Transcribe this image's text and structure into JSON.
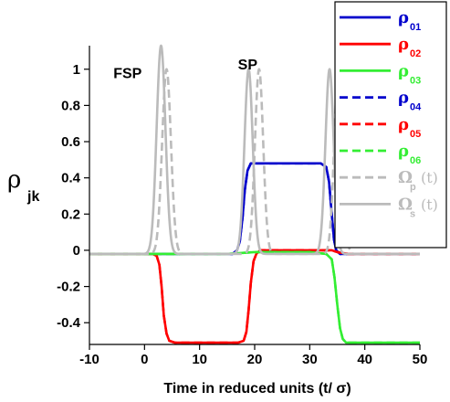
{
  "chart_data": {
    "type": "line",
    "xlabel": "Time in reduced units (t/ σ)",
    "ylabel": {
      "symbol": "ρ",
      "subscript": "jk"
    },
    "xlim": [
      -10,
      50
    ],
    "ylim": [
      -0.52,
      1.13
    ],
    "xticks": [
      -10,
      0,
      10,
      20,
      30,
      40,
      50
    ],
    "yticks": [
      -0.4,
      -0.2,
      0,
      0.2,
      0.4,
      0.6,
      0.8,
      1
    ],
    "ytick_labels": [
      "-0.4",
      "-0.2",
      "0",
      "0.2",
      "0.4",
      "0.6",
      "0.8",
      "1"
    ],
    "xtick_labels": [
      "-10",
      "0",
      "10",
      "20",
      "30",
      "40",
      "50"
    ],
    "annotations": [
      {
        "text": "FSP",
        "x": -0.5,
        "y": 0.95
      },
      {
        "text": "SP",
        "x": 20.5,
        "y": 1.0
      }
    ],
    "legend": {
      "position": "top-right",
      "entries": [
        {
          "symbol": "ρ",
          "sub": "01",
          "color": "#0000cc",
          "dash": "solid"
        },
        {
          "symbol": "ρ",
          "sub": "02",
          "color": "#ff0000",
          "dash": "solid"
        },
        {
          "symbol": "ρ",
          "sub": "03",
          "color": "#33ee33",
          "dash": "solid"
        },
        {
          "symbol": "ρ",
          "sub": "04",
          "color": "#0000cc",
          "dash": "dashed"
        },
        {
          "symbol": "ρ",
          "sub": "05",
          "color": "#ff0000",
          "dash": "dashed"
        },
        {
          "symbol": "ρ",
          "sub": "06",
          "color": "#33ee33",
          "dash": "dashed"
        },
        {
          "symbol": "Ω",
          "sub": "p",
          "suffix": "(t)",
          "color": "#bbbbbb",
          "dash": "dashed"
        },
        {
          "symbol": "Ω",
          "sub": "s",
          "suffix": "(t)",
          "color": "#bbbbbb",
          "dash": "solid"
        }
      ]
    },
    "series": [
      {
        "key": "rho01",
        "color": "#0000cc",
        "dash": "solid",
        "x": [
          -10,
          14,
          16,
          16.8,
          17.3,
          17.8,
          18.2,
          18.7,
          19.3,
          20,
          32,
          33,
          33.5,
          34,
          34.4,
          34.8,
          35.5,
          37,
          50
        ],
        "y": [
          -0.02,
          -0.02,
          -0.02,
          0.0,
          0.05,
          0.18,
          0.33,
          0.44,
          0.48,
          0.48,
          0.48,
          0.46,
          0.38,
          0.2,
          0.06,
          0.0,
          -0.02,
          -0.02,
          -0.02
        ]
      },
      {
        "key": "rho04",
        "color": "#0000cc",
        "dash": "dashed",
        "x": [
          -10,
          14,
          16,
          16.8,
          17.3,
          17.8,
          18.2,
          18.7,
          19.3,
          20,
          32,
          33,
          33.5,
          34,
          34.4,
          34.8,
          35.5,
          37,
          50
        ],
        "y": [
          -0.02,
          -0.02,
          -0.02,
          0.0,
          0.05,
          0.18,
          0.33,
          0.44,
          0.48,
          0.48,
          0.48,
          0.46,
          0.38,
          0.2,
          0.06,
          0.0,
          -0.02,
          -0.02,
          -0.02
        ]
      },
      {
        "key": "rho02",
        "color": "#ff0000",
        "dash": "solid",
        "x": [
          -10,
          1.5,
          2.2,
          2.7,
          3.1,
          3.5,
          4,
          4.5,
          5.5,
          17,
          18,
          18.5,
          18.9,
          19.3,
          19.8,
          20.3,
          21,
          34,
          35,
          37,
          50
        ],
        "y": [
          -0.02,
          -0.02,
          -0.03,
          -0.08,
          -0.2,
          -0.36,
          -0.46,
          -0.5,
          -0.51,
          -0.51,
          -0.5,
          -0.45,
          -0.33,
          -0.18,
          -0.06,
          -0.02,
          0.0,
          0.0,
          -0.01,
          -0.02,
          -0.02
        ]
      },
      {
        "key": "rho05",
        "color": "#ff0000",
        "dash": "dashed",
        "x": [
          -10,
          1.5,
          2.2,
          2.7,
          3.1,
          3.5,
          4,
          4.5,
          5.5,
          17,
          18,
          18.5,
          18.9,
          19.3,
          19.8,
          20.3,
          21,
          34,
          35,
          37,
          50
        ],
        "y": [
          -0.02,
          -0.02,
          -0.03,
          -0.08,
          -0.2,
          -0.36,
          -0.46,
          -0.5,
          -0.51,
          -0.51,
          -0.5,
          -0.45,
          -0.33,
          -0.18,
          -0.06,
          -0.02,
          0.0,
          0.0,
          -0.01,
          -0.02,
          -0.02
        ]
      },
      {
        "key": "rho03",
        "color": "#33ee33",
        "dash": "solid",
        "x": [
          -10,
          1,
          3,
          6,
          15,
          20,
          30,
          33,
          34,
          34.5,
          35,
          35.5,
          36,
          36.6,
          37.5,
          50
        ],
        "y": [
          -0.02,
          -0.02,
          -0.02,
          -0.02,
          -0.02,
          -0.01,
          -0.01,
          -0.02,
          -0.05,
          -0.15,
          -0.3,
          -0.43,
          -0.49,
          -0.51,
          -0.51,
          -0.51
        ]
      },
      {
        "key": "rho06",
        "color": "#33ee33",
        "dash": "dashed",
        "x": [
          -10,
          1,
          3,
          6,
          15,
          20,
          30,
          33,
          34,
          34.5,
          35,
          35.5,
          36,
          36.6,
          37.5,
          50
        ],
        "y": [
          -0.02,
          -0.02,
          -0.02,
          -0.02,
          -0.02,
          -0.01,
          -0.01,
          -0.02,
          -0.05,
          -0.15,
          -0.3,
          -0.43,
          -0.49,
          -0.51,
          -0.51,
          -0.51
        ]
      },
      {
        "key": "omega_p",
        "color": "#bbbbbb",
        "dash": "dashed",
        "baseline": -0.02,
        "pulses": [
          {
            "center": 4.0,
            "height": 1.0,
            "width": 0.8
          },
          {
            "center": 20.8,
            "height": 1.0,
            "width": 0.75
          },
          {
            "center": 35.2,
            "height": 1.0,
            "width": 0.75
          }
        ]
      },
      {
        "key": "omega_s",
        "color": "#bbbbbb",
        "dash": "solid",
        "baseline": -0.02,
        "pulses": [
          {
            "center": 3.0,
            "height": 1.13,
            "width": 0.8
          },
          {
            "center": 18.9,
            "height": 1.0,
            "width": 0.75
          },
          {
            "center": 33.6,
            "height": 1.0,
            "width": 0.75
          }
        ]
      }
    ]
  }
}
